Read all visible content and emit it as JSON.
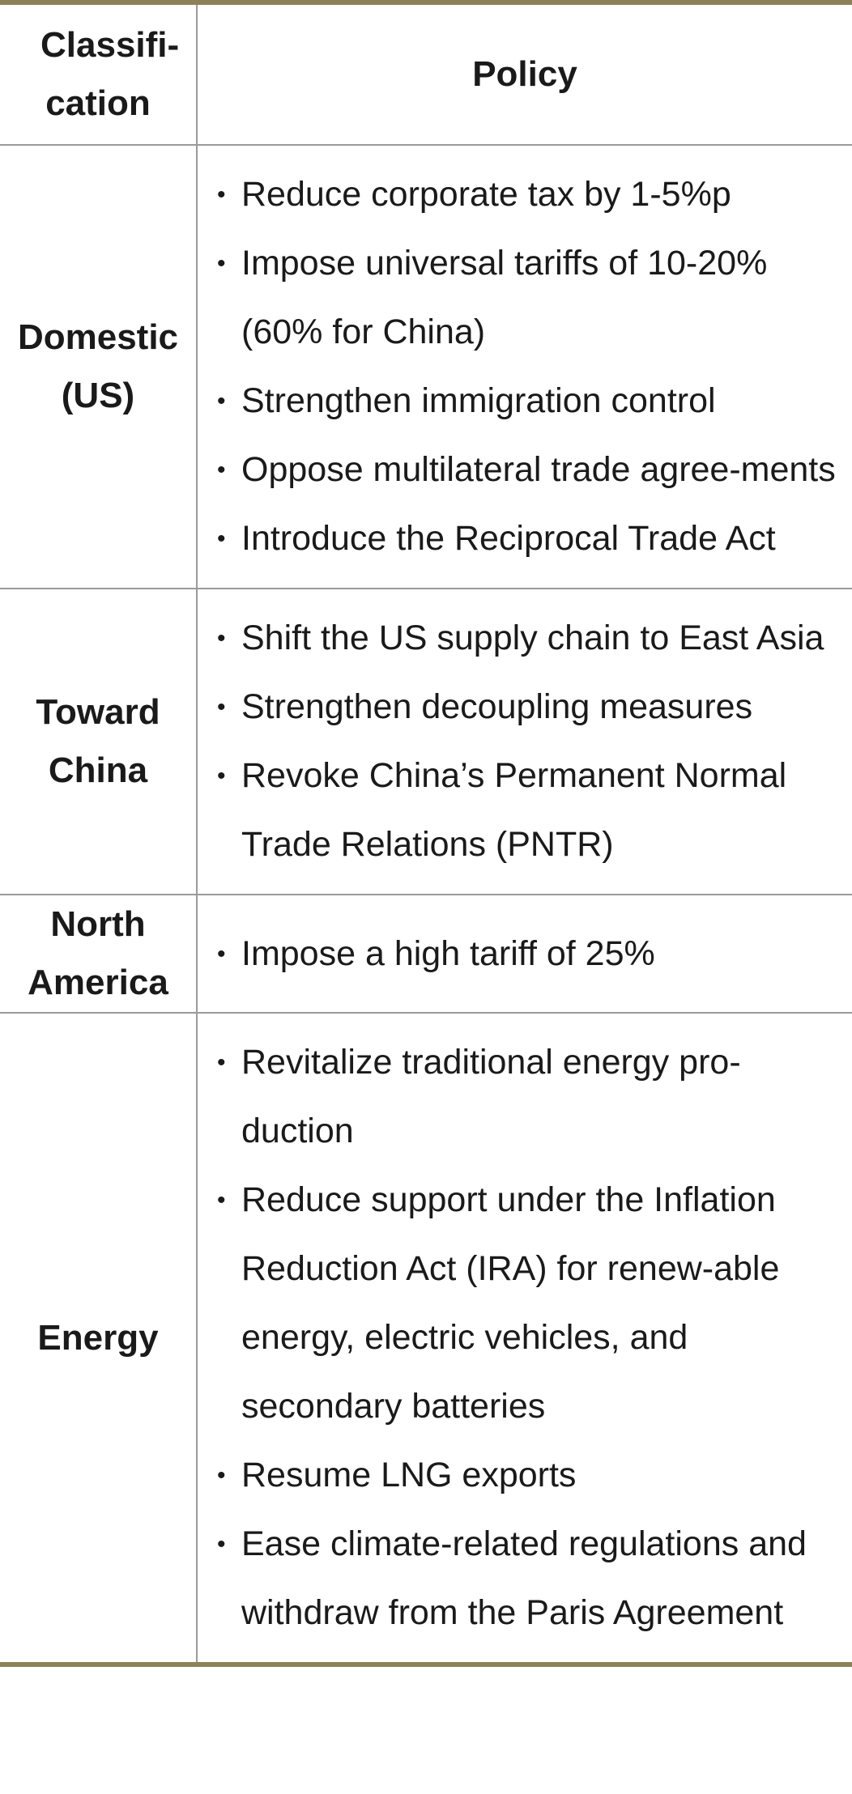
{
  "table": {
    "headers": [
      "Classifi-cation",
      "Policy"
    ],
    "rows": [
      {
        "category": "Domestic (US)",
        "items": [
          "Reduce corporate tax by 1-5%p",
          "Impose universal tariffs of 10-20% (60% for China)",
          "Strengthen immigration control",
          "Oppose multilateral trade agree-ments",
          "Introduce the Reciprocal Trade Act"
        ]
      },
      {
        "category": "Toward China",
        "items": [
          "Shift the US supply chain to East Asia",
          "Strengthen decoupling measures",
          "Revoke China’s Permanent Normal Trade Relations (PNTR)"
        ]
      },
      {
        "category": "North America",
        "items": [
          "Impose a high tariff of 25%"
        ]
      },
      {
        "category": "Energy",
        "items": [
          "Revitalize traditional energy pro-duction",
          "Reduce support under the Inflation Reduction Act (IRA) for renew-able energy, electric vehicles, and secondary batteries",
          "Resume LNG exports",
          "Ease climate-related regulations and withdraw from the Paris Agreement"
        ]
      }
    ]
  }
}
